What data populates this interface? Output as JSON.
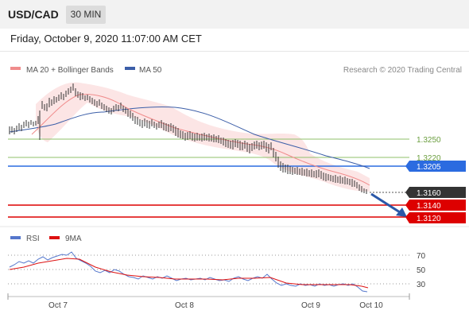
{
  "header": {
    "symbol": "USD/CAD",
    "timeframe": "30 MIN",
    "datetime": "Friday, October 9, 2020 11:07:00 AM CET"
  },
  "legend": {
    "ma20_label": "MA 20 + Bollinger Bands",
    "ma50_label": "MA 50",
    "copyright": "Research © 2020 Trading Central",
    "ma20_color": "#f08c8c",
    "ma50_color": "#3b5ea8",
    "rsi_label": "RSI",
    "ma_label": "9MA",
    "rsi_color": "#5577cc",
    "ma9_color": "#dd1111"
  },
  "levels": {
    "l1": {
      "text": "1.3250",
      "color": "#8fc06a"
    },
    "l2": {
      "text": "1.3220",
      "color": "#8fc06a"
    },
    "l3": {
      "text": "1.3205",
      "color": "#2b6be0"
    },
    "current": {
      "text": "1.3160",
      "color": "#333333"
    },
    "l4": {
      "text": "1.3140",
      "color": "#dd0000"
    },
    "l5": {
      "text": "1.3120",
      "color": "#dd0000"
    }
  },
  "rsi_ticks": [
    "70",
    "50",
    "30"
  ],
  "x_ticks": [
    "Oct 7",
    "Oct 8",
    "Oct 9",
    "Oct 10"
  ]
}
